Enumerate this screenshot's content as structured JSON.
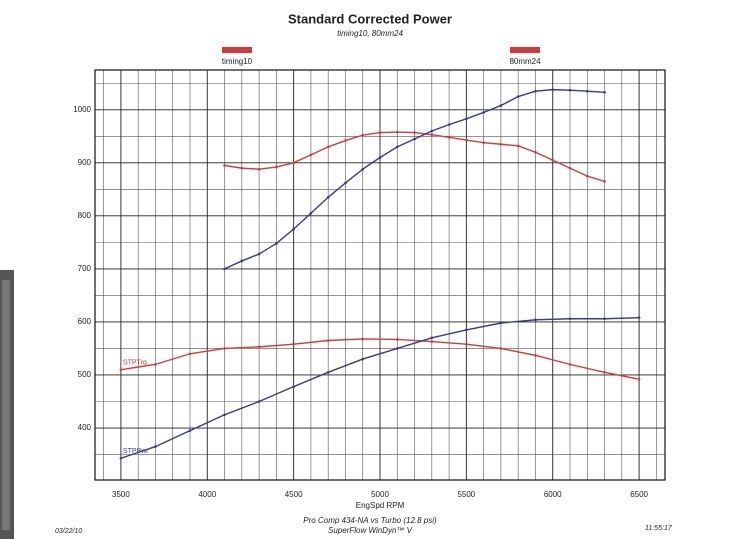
{
  "chart_data": {
    "type": "line",
    "title": "Standard Corrected Power",
    "subtitle": "timing10, 80mm24",
    "x_label": "EngSpd  RPM",
    "footer_lines": [
      "Pro Comp 434-NA vs Turbo (12.8 psi)",
      "SuperFlow WinDyn™ V"
    ],
    "date": "03/22/10",
    "time": "11:55:17",
    "xlim": [
      3350,
      6650
    ],
    "xticks": [
      3500,
      4000,
      4500,
      5000,
      5500,
      6000,
      6500
    ],
    "ylim": [
      302,
      1075
    ],
    "yticks": [
      400,
      500,
      600,
      700,
      800,
      900,
      1000
    ],
    "grid": true,
    "legend_color": "#d23a3a",
    "series": [
      {
        "name": "timing10",
        "color": "#d23a3a",
        "x": [
          4100,
          4200,
          4300,
          4400,
          4500,
          4600,
          4700,
          4800,
          4900,
          5000,
          5100,
          5200,
          5300,
          5400,
          5500,
          5600,
          5700,
          5800,
          5900,
          6000,
          6100,
          6200,
          6300
        ],
        "values": [
          895,
          890,
          888,
          892,
          900,
          915,
          930,
          942,
          952,
          957,
          958,
          957,
          953,
          948,
          943,
          938,
          935,
          932,
          920,
          905,
          890,
          875,
          865
        ]
      },
      {
        "name": "80mm24",
        "color": "#3a3a8c",
        "x": [
          4100,
          4200,
          4300,
          4400,
          4500,
          4600,
          4700,
          4800,
          4900,
          5000,
          5100,
          5200,
          5300,
          5400,
          5500,
          5600,
          5700,
          5800,
          5900,
          6000,
          6100,
          6200,
          6300
        ],
        "values": [
          700,
          715,
          728,
          748,
          775,
          805,
          835,
          862,
          888,
          910,
          930,
          945,
          960,
          972,
          983,
          995,
          1008,
          1025,
          1035,
          1038,
          1037,
          1035,
          1033
        ]
      },
      {
        "label": "STPTrq",
        "color": "#d23a3a",
        "x": [
          3500,
          3700,
          3900,
          4100,
          4300,
          4500,
          4700,
          4900,
          5100,
          5300,
          5500,
          5700,
          5900,
          6100,
          6300,
          6500
        ],
        "values": [
          510,
          520,
          540,
          550,
          553,
          558,
          565,
          568,
          567,
          563,
          558,
          550,
          537,
          520,
          505,
          492
        ]
      },
      {
        "label": "STPPwr",
        "color": "#3a3a8c",
        "x": [
          3500,
          3700,
          3900,
          4100,
          4300,
          4500,
          4700,
          4900,
          5100,
          5300,
          5500,
          5700,
          5900,
          6100,
          6300,
          6500
        ],
        "values": [
          343,
          365,
          395,
          425,
          450,
          478,
          505,
          530,
          550,
          570,
          585,
          598,
          604,
          606,
          606,
          608
        ]
      }
    ]
  }
}
